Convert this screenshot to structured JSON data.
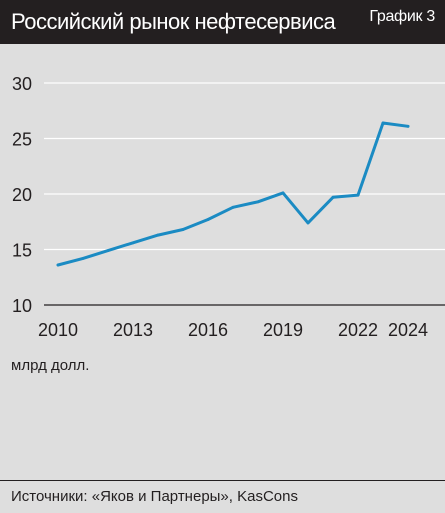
{
  "header": {
    "title": "Российский рынок нефтесервиса",
    "badge": "График 3"
  },
  "chart_data": {
    "type": "line",
    "title": "Российский рынок нефтесервиса",
    "xlabel": "",
    "ylabel": "",
    "unit_label": "млрд долл.",
    "x": [
      2010,
      2011,
      2012,
      2013,
      2014,
      2015,
      2016,
      2017,
      2018,
      2019,
      2020,
      2021,
      2022,
      2023,
      2024
    ],
    "y": [
      13.6,
      14.2,
      14.9,
      15.6,
      16.3,
      16.8,
      17.7,
      18.8,
      19.3,
      20.1,
      17.4,
      19.7,
      19.9,
      26.4,
      26.1
    ],
    "xlim": [
      2010,
      2024
    ],
    "ylim": [
      10,
      30
    ],
    "x_ticks": [
      2010,
      2013,
      2016,
      2019,
      2022,
      2024
    ],
    "y_ticks": [
      10,
      15,
      20,
      25,
      30
    ],
    "grid": "horizontal",
    "line_color": "#1b8bc3",
    "grid_color": "#ffffff",
    "background": "#dedede"
  },
  "footer": {
    "source": "Источники: «Яков и Партнеры», KasCons"
  }
}
